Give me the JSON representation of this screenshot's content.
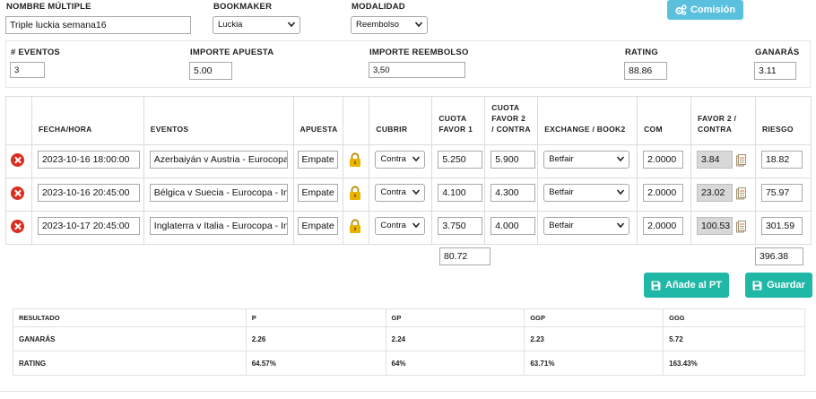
{
  "header": {
    "nombre_label": "NOMBRE MÚLTIPLE",
    "nombre_value": "Triple luckia semana16",
    "bookmaker_label": "BOOKMAKER",
    "bookmaker_value": "Luckia",
    "modalidad_label": "MODALIDAD",
    "modalidad_value": "Reembolso",
    "comision_button": "Comisión"
  },
  "summary": {
    "eventos_label": "# EVENTOS",
    "eventos_value": "3",
    "importe_apuesta_label": "IMPORTE APUESTA",
    "importe_apuesta_value": "5.00",
    "importe_reembolso_label": "IMPORTE REEMBOLSO",
    "importe_reembolso_value": "3,50",
    "rating_label": "RATING",
    "rating_value": "88.86",
    "ganaras_label": "GANARÁS",
    "ganaras_value": "3.11"
  },
  "table": {
    "headers": {
      "fecha": "FECHA/HORA",
      "eventos": "EVENTOS",
      "apuesta": "APUESTA",
      "cubrir": "CUBRIR",
      "cuota_favor1_a": "CUOTA",
      "cuota_favor1_b": "FAVOR 1",
      "cuota_favor2_a": "CUOTA",
      "cuota_favor2_b": "FAVOR 2",
      "cuota_favor2_c": "/ CONTRA",
      "exchange": "EXCHANGE / BOOK2",
      "com": "COM",
      "favor2_a": "FAVOR 2 /",
      "favor2_b": "CONTRA",
      "riesgo": "RIESGO"
    },
    "rows": [
      {
        "fecha": "2023-10-16 18:00:00",
        "evento": "Azerbaiyán v Austria - Eurocopa",
        "apuesta": "Empate",
        "cubrir": "Contra",
        "cuota1": "5.250",
        "cuota2": "5.900",
        "exchange": "Betfair",
        "com": "2.0000",
        "favor2": "3.84",
        "riesgo": "18.82"
      },
      {
        "fecha": "2023-10-16 20:45:00",
        "evento": "Bélgica v Suecia - Eurocopa - In",
        "apuesta": "Empate",
        "cubrir": "Contra",
        "cuota1": "4.100",
        "cuota2": "4.300",
        "exchange": "Betfair",
        "com": "2.0000",
        "favor2": "23.02",
        "riesgo": "75.97"
      },
      {
        "fecha": "2023-10-17 20:45:00",
        "evento": "Inglaterra v Italia - Eurocopa - In",
        "apuesta": "Empate",
        "cubrir": "Contra",
        "cuota1": "3.750",
        "cuota2": "4.000",
        "exchange": "Betfair",
        "com": "2.0000",
        "favor2": "100.53",
        "riesgo": "301.59"
      }
    ],
    "total_cuota1": "80.72",
    "total_riesgo": "396.38"
  },
  "actions": {
    "anade_pt": "Añade al PT",
    "guardar": "Guardar"
  },
  "results": {
    "headers": [
      "RESULTADO",
      "P",
      "GP",
      "GGP",
      "GGG"
    ],
    "rows": [
      [
        "GANARÁS",
        "2.26",
        "2.24",
        "2.23",
        "5.72"
      ],
      [
        "RATING",
        "64.57%",
        "64%",
        "63.71%",
        "163.43%"
      ]
    ]
  },
  "colors": {
    "info": "#5bc0de",
    "teal": "#1fb7a6",
    "delete": "#dd2c1f",
    "lock": "#e8b400"
  },
  "icons": {
    "delete": "delete-icon",
    "lock": "lock-icon",
    "copy": "copy-icon",
    "cogs": "cogs-icon",
    "save": "save-icon",
    "chevron": "chevron-down-icon"
  }
}
